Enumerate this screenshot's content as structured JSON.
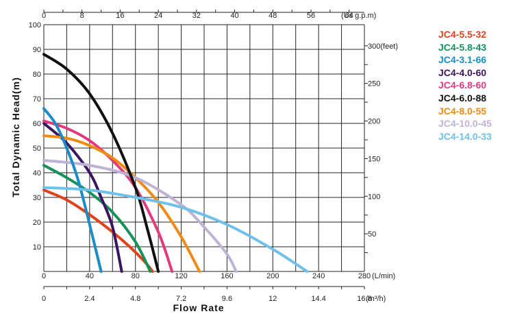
{
  "chart_data": {
    "type": "line",
    "ylabel": "Total Dynamic Head(m)",
    "xlabel": "Flow Rate",
    "x_unit": "(L/min)",
    "top_unit": "(Us g.p.m)",
    "bottom_unit": "(m³/h)",
    "xlim": [
      0,
      280
    ],
    "ylim": [
      0,
      100
    ],
    "grid": true,
    "legend_position": "right",
    "x_ticks": [
      {
        "v": 0,
        "label": "0"
      },
      {
        "v": 40,
        "label": "40"
      },
      {
        "v": 80,
        "label": "80"
      },
      {
        "v": 120,
        "label": "120"
      },
      {
        "v": 160,
        "label": "160"
      },
      {
        "v": 200,
        "label": "200"
      },
      {
        "v": 240,
        "label": "240"
      },
      {
        "v": 280,
        "label": "280"
      }
    ],
    "y_ticks": [
      {
        "v": 10,
        "label": "10"
      },
      {
        "v": 20,
        "label": "20"
      },
      {
        "v": 30,
        "label": "30"
      },
      {
        "v": 40,
        "label": "40"
      },
      {
        "v": 50,
        "label": "50"
      },
      {
        "v": 60,
        "label": "60"
      },
      {
        "v": 70,
        "label": "70"
      },
      {
        "v": 80,
        "label": "80"
      },
      {
        "v": 90,
        "label": "90"
      },
      {
        "v": 100,
        "label": "100"
      }
    ],
    "top_ticks": [
      {
        "v": 0,
        "label": "0"
      },
      {
        "v": 8,
        "label": "8"
      },
      {
        "v": 16,
        "label": "16"
      },
      {
        "v": 24,
        "label": "24"
      },
      {
        "v": 32,
        "label": "32"
      },
      {
        "v": 40,
        "label": "40"
      },
      {
        "v": 48,
        "label": "48"
      },
      {
        "v": 56,
        "label": "56"
      },
      {
        "v": 64,
        "label": "64"
      }
    ],
    "right_ticks": [
      {
        "v": 300,
        "label": "300(feet)"
      },
      {
        "v": 250,
        "label": "250"
      },
      {
        "v": 200,
        "label": "200"
      },
      {
        "v": 150,
        "label": "150"
      },
      {
        "v": 100,
        "label": "100"
      },
      {
        "v": 50,
        "label": "50"
      }
    ],
    "bottom_ticks": [
      {
        "v": 0,
        "label": "0"
      },
      {
        "v": 2.4,
        "label": "2.4"
      },
      {
        "v": 4.8,
        "label": "4.8"
      },
      {
        "v": 7.2,
        "label": "7.2"
      },
      {
        "v": 9.6,
        "label": "9.6"
      },
      {
        "v": 12,
        "label": "12"
      },
      {
        "v": 14.4,
        "label": "14.4"
      },
      {
        "v": 16.8,
        "label": "16.8"
      }
    ],
    "series": [
      {
        "name": "JC4-5.5-32",
        "color": "#e0431c",
        "x": [
          0,
          20,
          40,
          60,
          75,
          88,
          95
        ],
        "y": [
          33,
          29,
          23,
          16,
          10,
          4,
          0
        ]
      },
      {
        "name": "JC4-5.8-43",
        "color": "#16915a",
        "x": [
          0,
          20,
          40,
          60,
          80,
          93
        ],
        "y": [
          43,
          38,
          32,
          24,
          12,
          0
        ]
      },
      {
        "name": "JC4-3.1-66",
        "color": "#1a8cc6",
        "x": [
          0,
          10,
          20,
          30,
          40,
          50
        ],
        "y": [
          66,
          60,
          50,
          37,
          19,
          0
        ]
      },
      {
        "name": "JC4-4.0-60",
        "color": "#3d1460",
        "x": [
          0,
          20,
          40,
          50,
          60,
          68
        ],
        "y": [
          60,
          52,
          40,
          30,
          18,
          0
        ]
      },
      {
        "name": "JC4-6.8-60",
        "color": "#e23a7c",
        "x": [
          0,
          20,
          40,
          60,
          80,
          100,
          112
        ],
        "y": [
          61,
          58,
          53,
          45,
          34,
          16,
          0
        ]
      },
      {
        "name": "JC4-6.0-88",
        "color": "#111111",
        "x": [
          0,
          20,
          40,
          60,
          80,
          90,
          100
        ],
        "y": [
          88,
          82,
          72,
          56,
          34,
          18,
          0
        ]
      },
      {
        "name": "JC4-8.0-55",
        "color": "#ef8a14",
        "x": [
          0,
          20,
          40,
          60,
          80,
          100,
          120,
          136
        ],
        "y": [
          55,
          54,
          51,
          46,
          38,
          28,
          14,
          0
        ]
      },
      {
        "name": "JC4-10.0-45",
        "color": "#bfb2d6",
        "x": [
          0,
          40,
          80,
          120,
          140,
          160,
          168
        ],
        "y": [
          45,
          43,
          38,
          27,
          18,
          7,
          0
        ]
      },
      {
        "name": "JC4-14.0-33",
        "color": "#6fc0ea",
        "x": [
          0,
          40,
          80,
          120,
          160,
          200,
          230
        ],
        "y": [
          34,
          33,
          30,
          26,
          19,
          9,
          0
        ]
      }
    ]
  }
}
